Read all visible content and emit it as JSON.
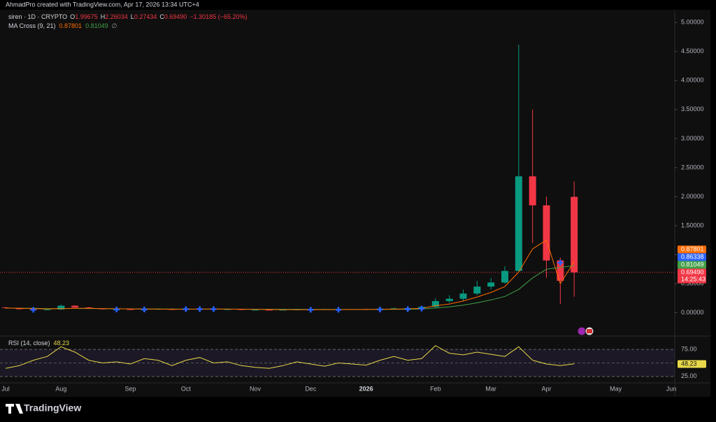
{
  "chart_data": {
    "type": "candlestick",
    "credit": "AhmadPro created with TradingView.com, Apr 17, 2026 13:34 UTC+4",
    "legend": {
      "symbol": "siren · 1D · CRYPTO",
      "o_label": "O",
      "open": "1.99675",
      "h_label": "H",
      "high": "2.26034",
      "l_label": "L",
      "low": "0.27434",
      "c_label": "C",
      "close": "0.69490",
      "change": "−1.30185 (−65.20%)"
    },
    "countdown": "14:25:43",
    "brand": "TradingView",
    "categories": [
      "Jul",
      null,
      null,
      null,
      "Aug",
      null,
      null,
      null,
      null,
      "Sep",
      null,
      null,
      null,
      "Oct",
      null,
      null,
      null,
      null,
      "Nov",
      null,
      null,
      null,
      "Dec",
      null,
      null,
      null,
      "2026",
      null,
      null,
      null,
      null,
      "Feb",
      null,
      null,
      null,
      "Mar",
      null,
      null,
      null,
      "Apr",
      null,
      null,
      null,
      null,
      "May",
      null,
      null,
      null,
      "Jun"
    ],
    "up_color": "#089981",
    "down_color": "#f23645",
    "open": [
      0.09,
      0.08,
      0.06,
      0.05,
      0.055,
      0.12,
      0.09,
      0.07,
      0.06,
      0.06,
      0.05,
      0.06,
      0.065,
      0.05,
      0.07,
      0.07,
      0.06,
      0.06,
      0.05,
      0.05,
      0.048,
      0.05,
      0.055,
      0.05,
      0.06,
      0.055,
      0.06,
      0.055,
      0.07,
      0.075,
      0.08,
      0.1,
      0.2,
      0.24,
      0.33,
      0.45,
      0.52,
      0.72,
      2.35,
      1.85,
      0.9,
      1.99675,
      null,
      null,
      null,
      null,
      null,
      null,
      null
    ],
    "high": [
      0.1,
      0.085,
      0.065,
      0.06,
      0.14,
      0.13,
      0.1,
      0.075,
      0.07,
      0.065,
      0.07,
      0.075,
      0.07,
      0.08,
      0.09,
      0.1,
      0.07,
      0.065,
      0.06,
      0.06,
      0.06,
      0.065,
      0.06,
      0.065,
      0.07,
      0.065,
      0.07,
      0.075,
      0.09,
      0.1,
      0.12,
      0.25,
      0.3,
      0.4,
      0.55,
      0.6,
      0.8,
      4.62,
      3.5,
      2.0,
      0.95,
      2.26034,
      null,
      null,
      null,
      null,
      null,
      null,
      null
    ],
    "low": [
      0.07,
      0.055,
      0.045,
      0.045,
      0.05,
      0.08,
      0.065,
      0.055,
      0.05,
      0.045,
      0.048,
      0.05,
      0.045,
      0.048,
      0.06,
      0.055,
      0.05,
      0.045,
      0.045,
      0.042,
      0.04,
      0.045,
      0.045,
      0.045,
      0.05,
      0.048,
      0.05,
      0.05,
      0.06,
      0.065,
      0.07,
      0.09,
      0.17,
      0.2,
      0.3,
      0.4,
      0.5,
      0.7,
      1.2,
      0.6,
      0.15,
      0.27434,
      null,
      null,
      null,
      null,
      null,
      null,
      null
    ],
    "close": [
      0.08,
      0.06,
      0.05,
      0.055,
      0.12,
      0.09,
      0.07,
      0.06,
      0.06,
      0.05,
      0.06,
      0.065,
      0.05,
      0.07,
      0.07,
      0.06,
      0.06,
      0.05,
      0.05,
      0.048,
      0.05,
      0.055,
      0.05,
      0.06,
      0.055,
      0.06,
      0.055,
      0.07,
      0.075,
      0.08,
      0.1,
      0.2,
      0.24,
      0.33,
      0.45,
      0.52,
      0.72,
      2.35,
      1.85,
      0.9,
      0.55,
      0.6949,
      null,
      null,
      null,
      null,
      null,
      null,
      null
    ],
    "ylim": [
      -0.15,
      5.22
    ],
    "yticks": [
      {
        "value": 0,
        "label": "0.00000"
      },
      {
        "value": 0.5,
        "label": "0.50000"
      },
      {
        "value": 1,
        "label": "1.00000"
      },
      {
        "value": 1.5,
        "label": "1.50000"
      },
      {
        "value": 2,
        "label": "2.00000"
      },
      {
        "value": 2.5,
        "label": "2.50000"
      },
      {
        "value": 3,
        "label": "3.00000"
      },
      {
        "value": 3.5,
        "label": "3.50000"
      },
      {
        "value": 4,
        "label": "4.00000"
      },
      {
        "value": 4.5,
        "label": "4.50000"
      },
      {
        "value": 5,
        "label": "5.00000"
      }
    ],
    "ma_cross": {
      "label": "MA Cross (9, 21)",
      "fast": {
        "color": "#ff6d00",
        "values": [
          0.08,
          0.075,
          0.07,
          0.065,
          0.07,
          0.075,
          0.075,
          0.07,
          0.068,
          0.065,
          0.062,
          0.062,
          0.06,
          0.06,
          0.062,
          0.063,
          0.062,
          0.06,
          0.058,
          0.055,
          0.052,
          0.052,
          0.052,
          0.053,
          0.054,
          0.055,
          0.056,
          0.058,
          0.062,
          0.066,
          0.075,
          0.12,
          0.15,
          0.2,
          0.27,
          0.35,
          0.45,
          0.7,
          1.1,
          1.25,
          0.5,
          0.87801,
          null,
          null,
          null,
          null,
          null,
          null,
          null
        ]
      },
      "slow": {
        "color": "#43a047",
        "values": [
          0.08,
          0.078,
          0.075,
          0.072,
          0.072,
          0.073,
          0.072,
          0.07,
          0.068,
          0.066,
          0.065,
          0.064,
          0.063,
          0.062,
          0.062,
          0.062,
          0.062,
          0.061,
          0.06,
          0.059,
          0.058,
          0.057,
          0.056,
          0.056,
          0.056,
          0.056,
          0.056,
          0.057,
          0.058,
          0.06,
          0.063,
          0.08,
          0.1,
          0.13,
          0.17,
          0.22,
          0.28,
          0.4,
          0.6,
          0.75,
          0.78,
          0.81049,
          null,
          null,
          null,
          null,
          null,
          null,
          null
        ]
      },
      "cross_color": "#2962ff",
      "cross_values": [
        null,
        null,
        0.05,
        null,
        null,
        null,
        null,
        null,
        0.055,
        null,
        0.055,
        null,
        null,
        0.06,
        0.06,
        0.06,
        null,
        null,
        null,
        null,
        null,
        null,
        0.05,
        null,
        0.05,
        null,
        null,
        0.055,
        null,
        0.06,
        0.07,
        null,
        null,
        null,
        null,
        null,
        null,
        null,
        null,
        null,
        0.86338,
        null,
        null,
        null,
        null,
        null,
        null,
        null,
        null
      ]
    },
    "rsi": {
      "label": "RSI (14, close)",
      "color": "#e8d84a",
      "values": [
        40,
        45,
        55,
        62,
        80,
        70,
        55,
        50,
        52,
        48,
        58,
        55,
        45,
        55,
        60,
        50,
        52,
        45,
        42,
        40,
        45,
        52,
        48,
        44,
        50,
        48,
        46,
        55,
        62,
        55,
        58,
        82,
        68,
        65,
        70,
        66,
        62,
        80,
        55,
        48,
        45,
        48.23,
        null,
        null,
        null,
        null,
        null,
        null,
        null
      ],
      "ylim": [
        17,
        92
      ],
      "yticks": [
        {
          "value": 75,
          "label": "75.00"
        },
        {
          "value": 25,
          "label": "25.00"
        }
      ]
    }
  }
}
